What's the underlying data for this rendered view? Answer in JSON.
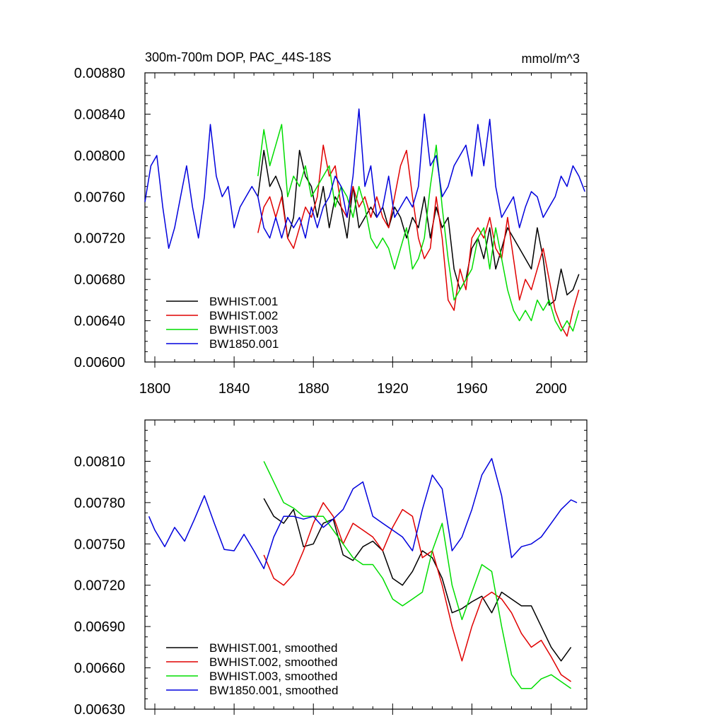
{
  "chart_data": [
    {
      "type": "line",
      "title": "300m-700m DOP, PAC_44S-18S",
      "units": "mmol/m^3",
      "xlim": [
        1795,
        2018
      ],
      "ylim": [
        0.006,
        0.0088
      ],
      "xticks": [
        1800,
        1840,
        1880,
        1920,
        1960,
        2000
      ],
      "yticks": [
        0.006,
        0.0064,
        0.0068,
        0.0072,
        0.0076,
        0.008,
        0.0084,
        0.0088
      ],
      "ytick_labels": [
        "0.00600",
        "0.00640",
        "0.00680",
        "0.00720",
        "0.00760",
        "0.00800",
        "0.00840",
        "0.00880"
      ],
      "xtick_labels": [
        "1800",
        "1840",
        "1880",
        "1920",
        "1960",
        "2000"
      ],
      "legend_position": "bottom-left",
      "series": [
        {
          "name": "BWHIST.001",
          "color": "#000000",
          "x": [
            1852,
            1855,
            1858,
            1861,
            1864,
            1867,
            1870,
            1873,
            1876,
            1879,
            1882,
            1885,
            1888,
            1891,
            1894,
            1897,
            1900,
            1903,
            1906,
            1909,
            1912,
            1915,
            1918,
            1921,
            1924,
            1927,
            1930,
            1933,
            1936,
            1939,
            1942,
            1945,
            1948,
            1951,
            1954,
            1957,
            1960,
            1963,
            1966,
            1969,
            1972,
            1975,
            1978,
            1981,
            1984,
            1987,
            1990,
            1993,
            1996,
            1999,
            2002,
            2005,
            2008,
            2011,
            2014
          ],
          "y": [
            0.0076,
            0.00805,
            0.0077,
            0.0078,
            0.00765,
            0.0072,
            0.0074,
            0.00805,
            0.0078,
            0.0077,
            0.0074,
            0.0077,
            0.0073,
            0.0076,
            0.0075,
            0.0072,
            0.0077,
            0.0073,
            0.0074,
            0.0075,
            0.0074,
            0.0075,
            0.0073,
            0.0075,
            0.0074,
            0.0072,
            0.0074,
            0.0073,
            0.0076,
            0.0072,
            0.0075,
            0.0073,
            0.0074,
            0.0069,
            0.0067,
            0.0068,
            0.0071,
            0.0072,
            0.007,
            0.0073,
            0.0069,
            0.0071,
            0.0073,
            0.0072,
            0.0071,
            0.007,
            0.0069,
            0.0073,
            0.007,
            0.00655,
            0.0066,
            0.0069,
            0.00665,
            0.0067,
            0.00685
          ]
        },
        {
          "name": "BWHIST.002",
          "color": "#e00000",
          "x": [
            1852,
            1855,
            1858,
            1861,
            1864,
            1867,
            1870,
            1873,
            1876,
            1879,
            1882,
            1885,
            1888,
            1891,
            1894,
            1897,
            1900,
            1903,
            1906,
            1909,
            1912,
            1915,
            1918,
            1921,
            1924,
            1927,
            1930,
            1933,
            1936,
            1939,
            1942,
            1945,
            1948,
            1951,
            1954,
            1957,
            1960,
            1963,
            1966,
            1969,
            1972,
            1975,
            1978,
            1981,
            1984,
            1987,
            1990,
            1993,
            1996,
            1999,
            2002,
            2005,
            2008,
            2011,
            2014
          ],
          "y": [
            0.00725,
            0.0075,
            0.0076,
            0.0074,
            0.0076,
            0.0072,
            0.0071,
            0.0073,
            0.0075,
            0.0074,
            0.0076,
            0.0081,
            0.0078,
            0.0079,
            0.0075,
            0.0074,
            0.0077,
            0.0075,
            0.0076,
            0.0074,
            0.0076,
            0.0074,
            0.0073,
            0.0076,
            0.0079,
            0.00805,
            0.0076,
            0.0072,
            0.007,
            0.0071,
            0.0076,
            0.0072,
            0.0066,
            0.0065,
            0.0069,
            0.0067,
            0.0072,
            0.0073,
            0.0072,
            0.0074,
            0.0071,
            0.007,
            0.0074,
            0.007,
            0.0066,
            0.0068,
            0.0067,
            0.0069,
            0.0071,
            0.0068,
            0.0065,
            0.00635,
            0.00625,
            0.0065,
            0.0067
          ]
        },
        {
          "name": "BWHIST.003",
          "color": "#00dd00",
          "x": [
            1852,
            1855,
            1858,
            1861,
            1864,
            1867,
            1870,
            1873,
            1876,
            1879,
            1882,
            1885,
            1888,
            1891,
            1894,
            1897,
            1900,
            1903,
            1906,
            1909,
            1912,
            1915,
            1918,
            1921,
            1924,
            1927,
            1930,
            1933,
            1936,
            1939,
            1942,
            1945,
            1948,
            1951,
            1954,
            1957,
            1960,
            1963,
            1966,
            1969,
            1972,
            1975,
            1978,
            1981,
            1984,
            1987,
            1990,
            1993,
            1996,
            1999,
            2002,
            2005,
            2008,
            2011,
            2014
          ],
          "y": [
            0.0078,
            0.00825,
            0.0079,
            0.0081,
            0.0083,
            0.0076,
            0.0078,
            0.0077,
            0.0079,
            0.0076,
            0.0077,
            0.0078,
            0.0079,
            0.0075,
            0.0077,
            0.0076,
            0.0074,
            0.0077,
            0.0075,
            0.0072,
            0.0071,
            0.0072,
            0.0071,
            0.0069,
            0.0071,
            0.0073,
            0.0069,
            0.007,
            0.0072,
            0.0077,
            0.0081,
            0.0075,
            0.007,
            0.0066,
            0.0067,
            0.0068,
            0.0069,
            0.0072,
            0.0073,
            0.0069,
            0.0073,
            0.007,
            0.0067,
            0.0065,
            0.0064,
            0.0065,
            0.0064,
            0.0066,
            0.0065,
            0.0066,
            0.0064,
            0.0063,
            0.0064,
            0.0063,
            0.0065
          ]
        },
        {
          "name": "BW1850.001",
          "color": "#0000dd",
          "x": [
            1795,
            1798,
            1801,
            1804,
            1807,
            1810,
            1813,
            1816,
            1819,
            1822,
            1825,
            1828,
            1831,
            1834,
            1837,
            1840,
            1843,
            1846,
            1849,
            1852,
            1855,
            1858,
            1861,
            1864,
            1867,
            1870,
            1873,
            1876,
            1879,
            1882,
            1885,
            1888,
            1891,
            1894,
            1897,
            1900,
            1903,
            1906,
            1909,
            1912,
            1915,
            1918,
            1921,
            1924,
            1927,
            1930,
            1933,
            1936,
            1939,
            1942,
            1945,
            1948,
            1951,
            1954,
            1957,
            1960,
            1963,
            1966,
            1969,
            1972,
            1975,
            1978,
            1981,
            1984,
            1987,
            1990,
            1993,
            1996,
            1999,
            2002,
            2005,
            2008,
            2011,
            2014,
            2017
          ],
          "y": [
            0.00755,
            0.0079,
            0.008,
            0.0075,
            0.0071,
            0.0073,
            0.0076,
            0.0079,
            0.0075,
            0.0072,
            0.0076,
            0.0083,
            0.0078,
            0.0076,
            0.0077,
            0.0073,
            0.0075,
            0.0076,
            0.0077,
            0.0076,
            0.0073,
            0.0072,
            0.0074,
            0.0072,
            0.0074,
            0.0073,
            0.0074,
            0.0072,
            0.0075,
            0.0073,
            0.0075,
            0.0076,
            0.0078,
            0.0077,
            0.0074,
            0.0078,
            0.00845,
            0.0077,
            0.0079,
            0.0074,
            0.0075,
            0.0078,
            0.0074,
            0.0075,
            0.0076,
            0.0075,
            0.0077,
            0.0084,
            0.0079,
            0.008,
            0.0076,
            0.0077,
            0.0079,
            0.008,
            0.0081,
            0.0078,
            0.0083,
            0.0079,
            0.00835,
            0.0077,
            0.0074,
            0.0075,
            0.0076,
            0.0073,
            0.0075,
            0.00765,
            0.0076,
            0.0074,
            0.0075,
            0.0076,
            0.0078,
            0.0077,
            0.0079,
            0.0078,
            0.00765
          ]
        }
      ]
    },
    {
      "type": "line",
      "xlim": [
        1795,
        2018
      ],
      "ylim": [
        0.0063,
        0.0084
      ],
      "xticks": [
        1800,
        1840,
        1880,
        1920,
        1960,
        2000
      ],
      "yticks": [
        0.0063,
        0.0066,
        0.0069,
        0.0072,
        0.0075,
        0.0078,
        0.0081
      ],
      "ytick_labels": [
        "0.00630",
        "0.00660",
        "0.00690",
        "0.00720",
        "0.00750",
        "0.00780",
        "0.00810"
      ],
      "legend_position": "bottom-left",
      "series": [
        {
          "name": "BWHIST.001, smoothed",
          "color": "#000000",
          "x": [
            1855,
            1860,
            1865,
            1870,
            1875,
            1880,
            1885,
            1890,
            1895,
            1900,
            1905,
            1910,
            1915,
            1920,
            1925,
            1930,
            1935,
            1940,
            1945,
            1950,
            1955,
            1960,
            1965,
            1970,
            1975,
            1980,
            1985,
            1990,
            1995,
            2000,
            2005,
            2010
          ],
          "y": [
            0.00783,
            0.0077,
            0.00765,
            0.00775,
            0.00748,
            0.0075,
            0.00765,
            0.00768,
            0.00742,
            0.00738,
            0.00748,
            0.00752,
            0.00745,
            0.00725,
            0.0072,
            0.0073,
            0.00745,
            0.0074,
            0.00725,
            0.007,
            0.00703,
            0.00708,
            0.00712,
            0.007,
            0.00715,
            0.0071,
            0.00705,
            0.00705,
            0.0069,
            0.00675,
            0.00665,
            0.00675
          ]
        },
        {
          "name": "BWHIST.002, smoothed",
          "color": "#e00000",
          "x": [
            1855,
            1860,
            1865,
            1870,
            1875,
            1880,
            1885,
            1890,
            1895,
            1900,
            1905,
            1910,
            1915,
            1920,
            1925,
            1930,
            1935,
            1940,
            1945,
            1950,
            1955,
            1960,
            1965,
            1970,
            1975,
            1980,
            1985,
            1990,
            1995,
            2000,
            2005,
            2010
          ],
          "y": [
            0.00742,
            0.00725,
            0.0072,
            0.00728,
            0.00745,
            0.00765,
            0.0078,
            0.0077,
            0.0075,
            0.00765,
            0.0076,
            0.00755,
            0.00745,
            0.00762,
            0.00775,
            0.0077,
            0.0074,
            0.00745,
            0.0072,
            0.0069,
            0.00665,
            0.0069,
            0.0071,
            0.00715,
            0.0071,
            0.007,
            0.00685,
            0.00675,
            0.0068,
            0.00668,
            0.00655,
            0.0065
          ]
        },
        {
          "name": "BWHIST.003, smoothed",
          "color": "#00dd00",
          "x": [
            1855,
            1860,
            1865,
            1870,
            1875,
            1880,
            1885,
            1890,
            1895,
            1900,
            1905,
            1910,
            1915,
            1920,
            1925,
            1930,
            1935,
            1940,
            1945,
            1950,
            1955,
            1960,
            1965,
            1970,
            1975,
            1980,
            1985,
            1990,
            1995,
            2000,
            2005,
            2010
          ],
          "y": [
            0.0081,
            0.00795,
            0.0078,
            0.00776,
            0.0077,
            0.0077,
            0.0077,
            0.0076,
            0.0075,
            0.0074,
            0.00735,
            0.00735,
            0.00725,
            0.0071,
            0.00705,
            0.0071,
            0.00715,
            0.00745,
            0.00765,
            0.0072,
            0.00695,
            0.00715,
            0.00735,
            0.0073,
            0.0069,
            0.00655,
            0.00645,
            0.00645,
            0.00652,
            0.00655,
            0.0065,
            0.00645
          ]
        },
        {
          "name": "BW1850.001, smoothed",
          "color": "#0000dd",
          "x": [
            1797,
            1800,
            1805,
            1810,
            1815,
            1820,
            1825,
            1830,
            1835,
            1840,
            1845,
            1850,
            1855,
            1860,
            1865,
            1870,
            1875,
            1880,
            1885,
            1890,
            1895,
            1900,
            1905,
            1910,
            1915,
            1920,
            1925,
            1930,
            1935,
            1940,
            1945,
            1950,
            1955,
            1960,
            1965,
            1970,
            1975,
            1980,
            1985,
            1990,
            1995,
            2000,
            2005,
            2010,
            2013
          ],
          "y": [
            0.0077,
            0.0076,
            0.00748,
            0.00762,
            0.00752,
            0.00768,
            0.00785,
            0.00765,
            0.00746,
            0.00745,
            0.00757,
            0.00745,
            0.00732,
            0.00755,
            0.0077,
            0.0077,
            0.00768,
            0.0077,
            0.00762,
            0.00768,
            0.00775,
            0.0079,
            0.00795,
            0.0077,
            0.00765,
            0.0076,
            0.00755,
            0.00745,
            0.00775,
            0.008,
            0.0079,
            0.00745,
            0.00755,
            0.00775,
            0.008,
            0.00812,
            0.00785,
            0.0074,
            0.00748,
            0.0075,
            0.00755,
            0.00765,
            0.00775,
            0.00782,
            0.0078
          ]
        }
      ]
    }
  ]
}
